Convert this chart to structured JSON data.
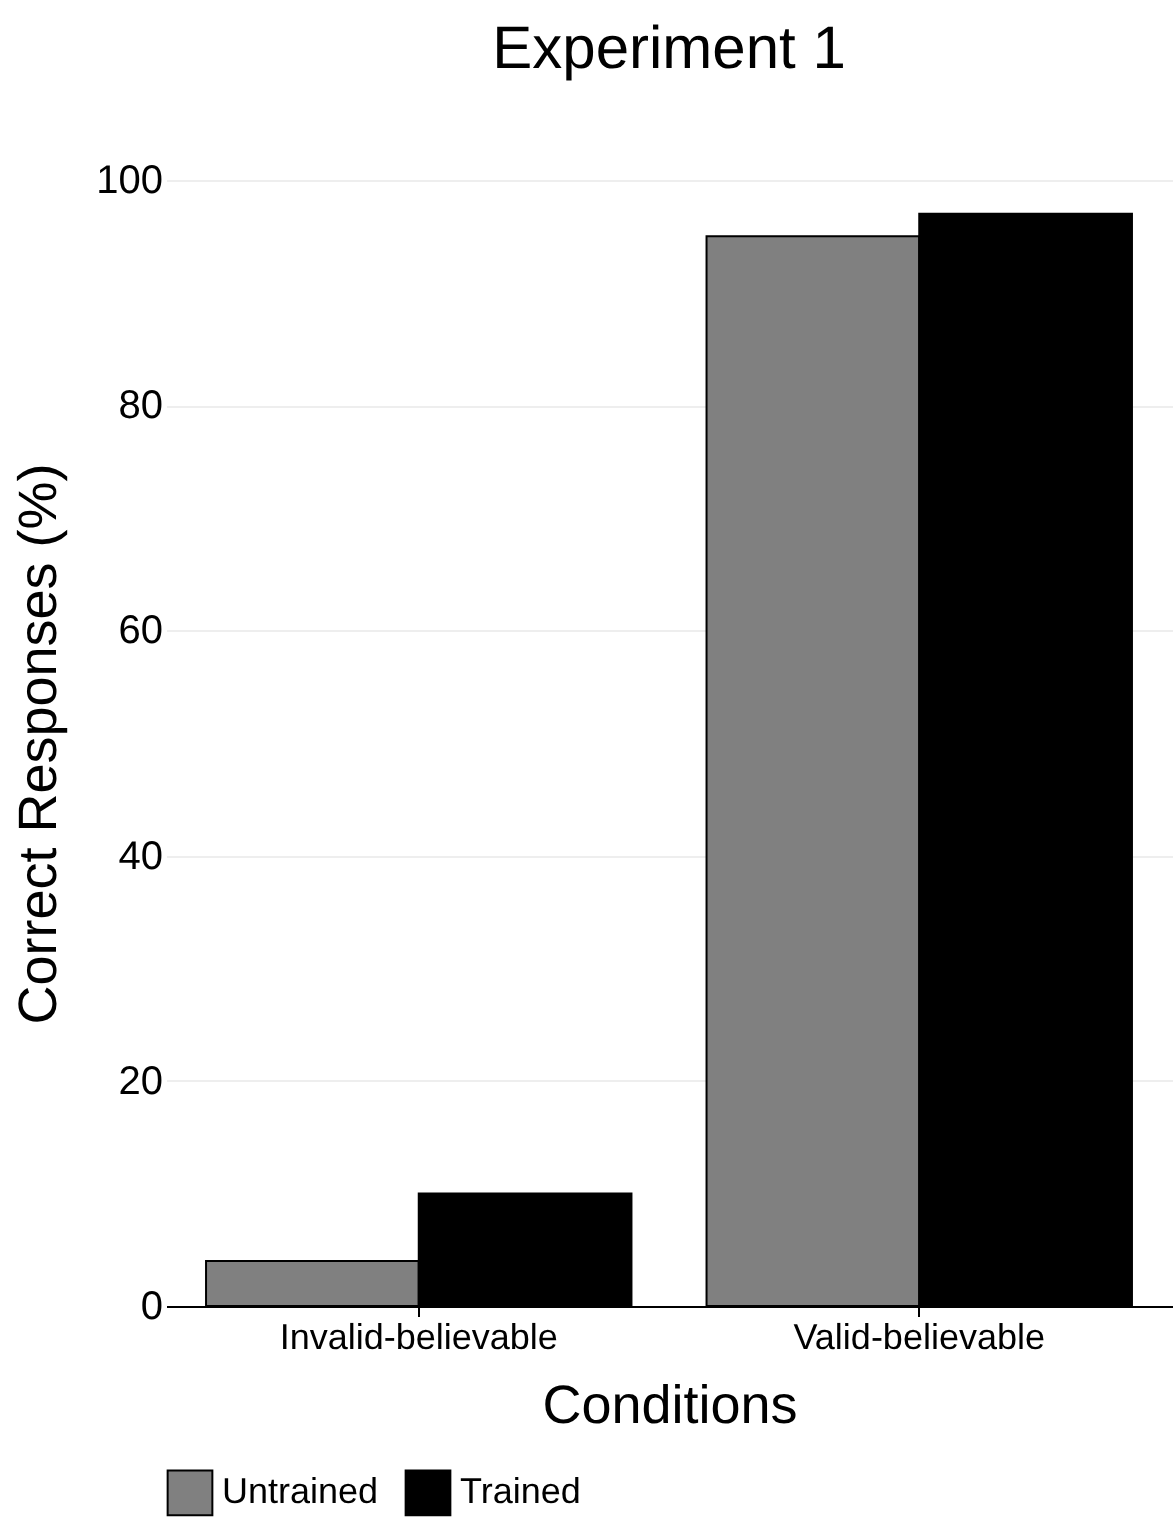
{
  "chart_data": {
    "type": "bar",
    "title": "Experiment 1",
    "xlabel": "Conditions",
    "ylabel": "Correct Responses (%)",
    "categories": [
      "Invalid-believable",
      "Valid-believable"
    ],
    "series": [
      {
        "name": "Untrained",
        "color": "#808080",
        "values": [
          4,
          95
        ]
      },
      {
        "name": "Trained",
        "color": "#000000",
        "values": [
          10,
          97
        ]
      }
    ],
    "ylim": [
      0,
      100
    ],
    "yticks": [
      0,
      20,
      40,
      60,
      80,
      100
    ],
    "grid": "y",
    "legend": "bottom"
  }
}
